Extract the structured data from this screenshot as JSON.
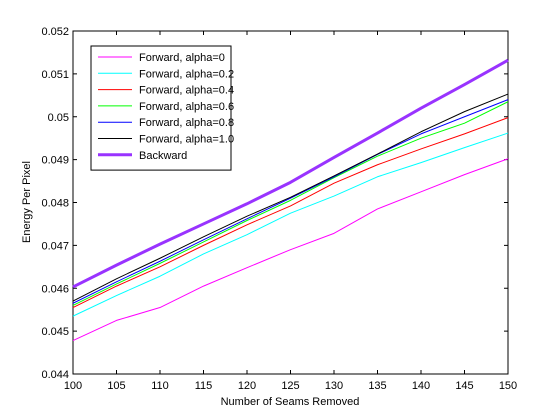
{
  "chart_data": {
    "type": "line",
    "title": "",
    "xlabel": "Number of Seams Removed",
    "ylabel": "Energy Per Pixel",
    "xlim": [
      100,
      150
    ],
    "ylim": [
      0.044,
      0.052
    ],
    "x_ticks": [
      "100",
      "105",
      "110",
      "115",
      "120",
      "125",
      "130",
      "135",
      "140",
      "145",
      "150"
    ],
    "y_ticks": [
      "0.044",
      "0.045",
      "0.046",
      "0.047",
      "0.048",
      "0.049",
      "0.05",
      "0.051",
      "0.052"
    ],
    "grid": false,
    "legend_position": "top-left",
    "x": [
      100,
      105,
      110,
      115,
      120,
      125,
      130,
      135,
      140,
      145,
      150
    ],
    "series": [
      {
        "name": "Forward, alpha=0",
        "color": "#ff00ff",
        "width": "thin",
        "values": [
          0.04478,
          0.04525,
          0.04555,
          0.04605,
          0.04648,
          0.0469,
          0.04728,
          0.04785,
          0.04825,
          0.04865,
          0.04902
        ]
      },
      {
        "name": "Forward, alpha=0.2",
        "color": "#00ffff",
        "width": "thin",
        "values": [
          0.04535,
          0.04583,
          0.04628,
          0.0468,
          0.04725,
          0.04775,
          0.04815,
          0.0486,
          0.04893,
          0.04928,
          0.04962
        ]
      },
      {
        "name": "Forward, alpha=0.4",
        "color": "#ff0000",
        "width": "thin",
        "values": [
          0.04555,
          0.04605,
          0.0465,
          0.047,
          0.04748,
          0.04792,
          0.04845,
          0.04888,
          0.04925,
          0.0496,
          0.04998
        ]
      },
      {
        "name": "Forward, alpha=0.6",
        "color": "#00ff00",
        "width": "thin",
        "values": [
          0.0456,
          0.0461,
          0.04658,
          0.04708,
          0.04758,
          0.04805,
          0.04858,
          0.04908,
          0.0495,
          0.04985,
          0.05035
        ]
      },
      {
        "name": "Forward, alpha=0.8",
        "color": "#0000ff",
        "width": "thin",
        "values": [
          0.04565,
          0.04615,
          0.04663,
          0.04713,
          0.04762,
          0.0481,
          0.0486,
          0.04912,
          0.0496,
          0.05,
          0.0504
        ]
      },
      {
        "name": "Forward, alpha=1.0",
        "color": "#000000",
        "width": "thin",
        "values": [
          0.0457,
          0.04622,
          0.0467,
          0.0472,
          0.04768,
          0.04812,
          0.04862,
          0.04913,
          0.04965,
          0.05012,
          0.05053
        ]
      },
      {
        "name": "Backward",
        "color": "#9933ff",
        "width": "thick",
        "values": [
          0.04603,
          0.04654,
          0.04703,
          0.0475,
          0.04797,
          0.04847,
          0.04905,
          0.04962,
          0.0502,
          0.05075,
          0.05132
        ]
      }
    ]
  }
}
